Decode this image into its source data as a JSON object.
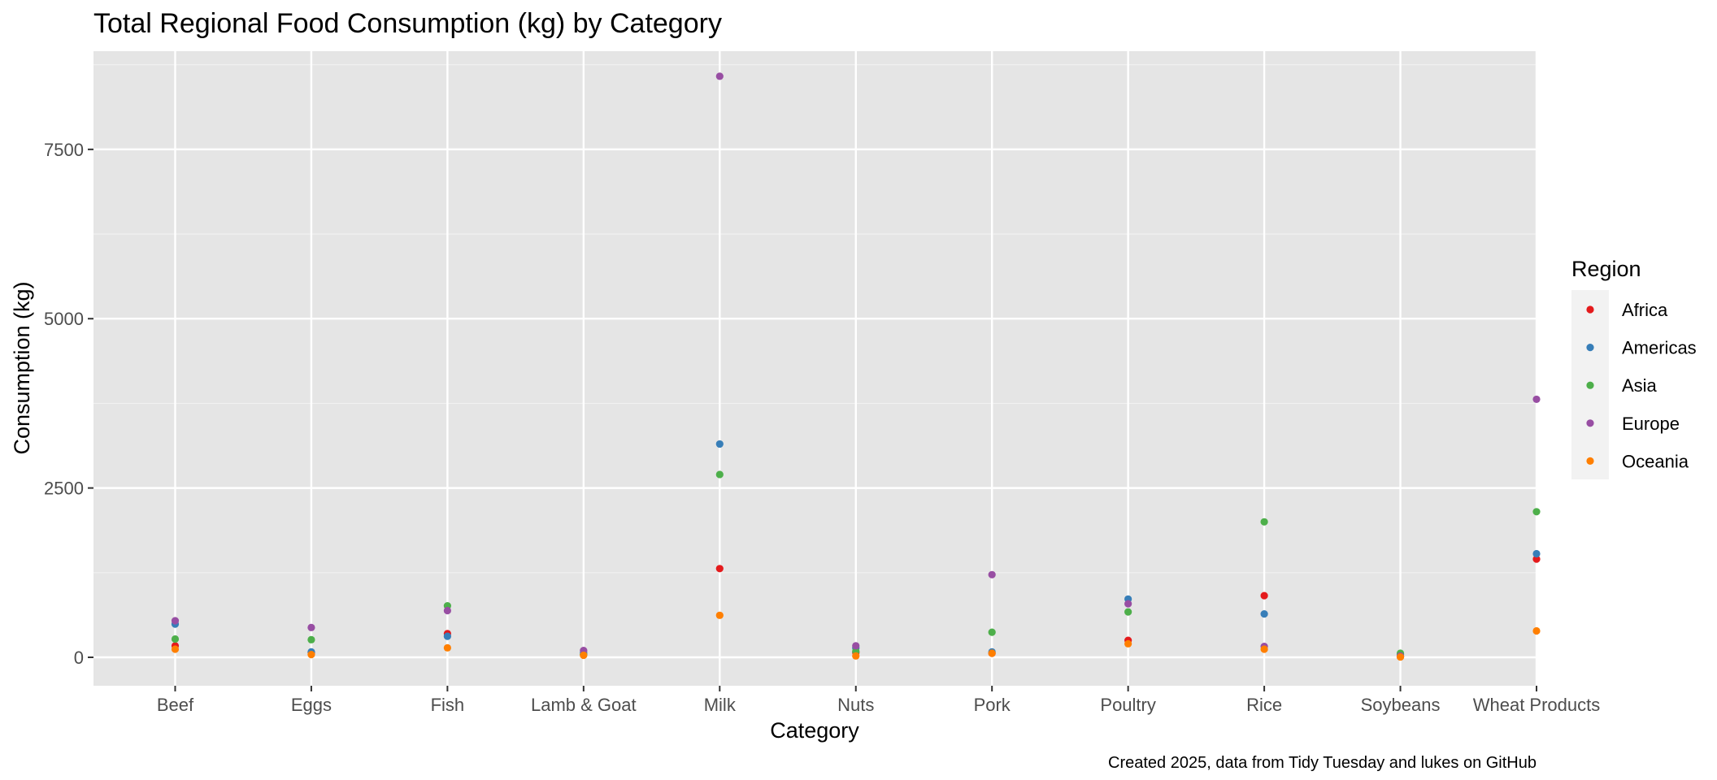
{
  "chart_data": {
    "type": "scatter",
    "title": "Total Regional Food Consumption (kg) by Category",
    "xlabel": "Category",
    "ylabel": "Consumption (kg)",
    "caption": "Created 2025, data from Tidy Tuesday and lukes on GitHub",
    "categories": [
      "Beef",
      "Eggs",
      "Fish",
      "Lamb & Goat",
      "Milk",
      "Nuts",
      "Pork",
      "Poultry",
      "Rice",
      "Soybeans",
      "Wheat Products"
    ],
    "ylim": [
      -420,
      8950
    ],
    "y_ticks": [
      0,
      2500,
      5000,
      7500
    ],
    "y_tick_labels": [
      "0",
      "2500",
      "5000",
      "7500"
    ],
    "grid": true,
    "legend": {
      "title": "Region",
      "position": "right"
    },
    "series": [
      {
        "name": "Africa",
        "color": "#e41a1c",
        "values": [
          170,
          70,
          350,
          40,
          1310,
          70,
          60,
          250,
          910,
          10,
          1450
        ]
      },
      {
        "name": "Americas",
        "color": "#377eb8",
        "values": [
          490,
          80,
          310,
          70,
          3150,
          140,
          80,
          860,
          640,
          40,
          1530
        ]
      },
      {
        "name": "Asia",
        "color": "#4daf4a",
        "values": [
          270,
          260,
          760,
          40,
          2700,
          90,
          370,
          670,
          2000,
          60,
          2150
        ]
      },
      {
        "name": "Europe",
        "color": "#984ea3",
        "values": [
          540,
          440,
          690,
          100,
          8580,
          170,
          1220,
          790,
          160,
          20,
          3810
        ]
      },
      {
        "name": "Oceania",
        "color": "#ff7f00",
        "values": [
          120,
          40,
          140,
          30,
          620,
          20,
          60,
          200,
          120,
          5,
          390
        ]
      }
    ]
  }
}
